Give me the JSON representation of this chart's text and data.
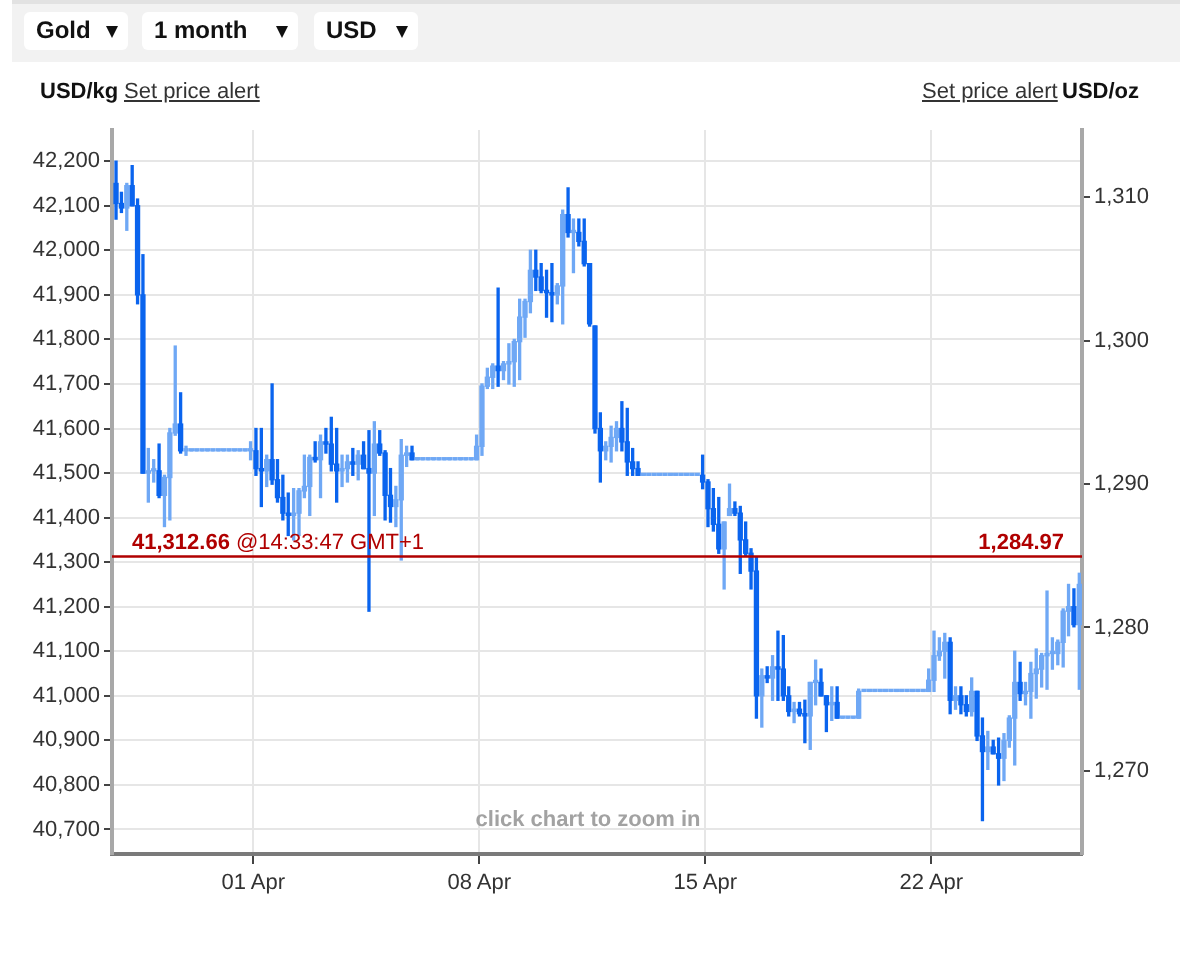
{
  "chart_data": {
    "type": "candlestick",
    "ylabel": "USD/kg",
    "y2label": "USD/oz",
    "grid": true,
    "xlim": [
      "--03-27T15:00",
      "--04-26T16:00"
    ],
    "xticks": [
      {
        "value": "--04-01",
        "label": "01 Apr"
      },
      {
        "value": "--04-08",
        "label": "08 Apr"
      },
      {
        "value": "--04-15",
        "label": "15 Apr"
      },
      {
        "value": "--04-22",
        "label": "22 Apr"
      }
    ],
    "ylim": [
      40645,
      42270
    ],
    "yticks": [
      {
        "value": 40700,
        "label": "40,700"
      },
      {
        "value": 40800,
        "label": "40,800"
      },
      {
        "value": 40900,
        "label": "40,900"
      },
      {
        "value": 41000,
        "label": "41,000"
      },
      {
        "value": 41100,
        "label": "41,100"
      },
      {
        "value": 41200,
        "label": "41,200"
      },
      {
        "value": 41300,
        "label": "41,300"
      },
      {
        "value": 41400,
        "label": "41,400"
      },
      {
        "value": 41500,
        "label": "41,500"
      },
      {
        "value": 41600,
        "label": "41,600"
      },
      {
        "value": 41700,
        "label": "41,700"
      },
      {
        "value": 41800,
        "label": "41,800"
      },
      {
        "value": 41900,
        "label": "41,900"
      },
      {
        "value": 42000,
        "label": "42,000"
      },
      {
        "value": 42100,
        "label": "42,100"
      },
      {
        "value": 42200,
        "label": "42,200"
      }
    ],
    "y2lim": [
      1264.2,
      1314.7
    ],
    "y2ticks": [
      {
        "value": 1270,
        "label": "1,270"
      },
      {
        "value": 1280,
        "label": "1,280"
      },
      {
        "value": 1290,
        "label": "1,290"
      },
      {
        "value": 1300,
        "label": "1,300"
      },
      {
        "value": 1310,
        "label": "1,310"
      }
    ],
    "ref_lines": [
      {
        "axis": "y",
        "value": 41312.66,
        "label": "41,312.66 @14:33:47 GMT+1",
        "color": "#b00000"
      }
    ],
    "annotations": [
      "Gold",
      "1 month",
      "USD",
      "Set price alert",
      "Set price alert",
      "click chart to zoom in",
      {
        "text": "1,284.97",
        "x": "--04-26T16:00",
        "y": 41312.66
      }
    ],
    "x": [
      "--03-27T18:00",
      "--03-27T22:00",
      "--03-28T02:00",
      "--03-28T06:00",
      "--03-28T10:00",
      "--03-28T14:00",
      "--03-28T18:00",
      "--03-28T22:00",
      "--03-29T02:00",
      "--03-29T06:00",
      "--03-29T10:00",
      "--03-29T14:00",
      "--03-29T18:00",
      "--03-29T22:00",
      "--03-30T02:00",
      "--03-30T06:00",
      "--03-30T10:00",
      "--03-30T14:00",
      "--03-30T18:00",
      "--03-30T22:00",
      "--03-31T02:00",
      "--03-31T06:00",
      "--03-31T10:00",
      "--03-31T14:00",
      "--03-31T18:00",
      "--03-31T22:00",
      "--04-01T02:00",
      "--04-01T06:00",
      "--04-01T10:00",
      "--04-01T14:00",
      "--04-01T18:00",
      "--04-01T22:00",
      "--04-02T02:00",
      "--04-02T06:00",
      "--04-02T10:00",
      "--04-02T14:00",
      "--04-02T18:00",
      "--04-02T22:00",
      "--04-03T02:00",
      "--04-03T06:00",
      "--04-03T10:00",
      "--04-03T14:00",
      "--04-03T18:00",
      "--04-03T22:00",
      "--04-04T02:00",
      "--04-04T06:00",
      "--04-04T10:00",
      "--04-04T14:00",
      "--04-04T18:00",
      "--04-04T22:00",
      "--04-05T02:00",
      "--04-05T06:00",
      "--04-05T10:00",
      "--04-05T14:00",
      "--04-05T18:00",
      "--04-05T22:00",
      "--04-06T02:00",
      "--04-06T06:00",
      "--04-06T10:00",
      "--04-06T14:00",
      "--04-06T18:00",
      "--04-06T22:00",
      "--04-07T02:00",
      "--04-07T06:00",
      "--04-07T10:00",
      "--04-07T14:00",
      "--04-07T18:00",
      "--04-07T22:00",
      "--04-08T02:00",
      "--04-08T06:00",
      "--04-08T10:00",
      "--04-08T14:00",
      "--04-08T18:00",
      "--04-08T22:00",
      "--04-09T02:00",
      "--04-09T06:00",
      "--04-09T10:00",
      "--04-09T14:00",
      "--04-09T18:00",
      "--04-09T22:00",
      "--04-10T02:00",
      "--04-10T06:00",
      "--04-10T10:00",
      "--04-10T14:00",
      "--04-10T18:00",
      "--04-10T22:00",
      "--04-11T02:00",
      "--04-11T06:00",
      "--04-11T10:00",
      "--04-11T14:00",
      "--04-11T18:00",
      "--04-11T22:00",
      "--04-12T02:00",
      "--04-12T06:00",
      "--04-12T10:00",
      "--04-12T14:00",
      "--04-12T18:00",
      "--04-12T22:00",
      "--04-13T02:00",
      "--04-13T06:00",
      "--04-13T10:00",
      "--04-13T14:00",
      "--04-13T18:00",
      "--04-13T22:00",
      "--04-14T02:00",
      "--04-14T06:00",
      "--04-14T10:00",
      "--04-14T14:00",
      "--04-14T18:00",
      "--04-14T22:00",
      "--04-15T02:00",
      "--04-15T06:00",
      "--04-15T10:00",
      "--04-15T14:00",
      "--04-15T18:00",
      "--04-15T22:00",
      "--04-16T02:00",
      "--04-16T06:00",
      "--04-16T10:00",
      "--04-16T14:00",
      "--04-16T18:00",
      "--04-16T22:00",
      "--04-17T02:00",
      "--04-17T06:00",
      "--04-17T10:00",
      "--04-17T14:00",
      "--04-17T18:00",
      "--04-17T22:00",
      "--04-18T02:00",
      "--04-18T06:00",
      "--04-18T10:00",
      "--04-18T14:00",
      "--04-18T18:00",
      "--04-18T22:00",
      "--04-19T02:00",
      "--04-19T06:00",
      "--04-19T10:00",
      "--04-19T14:00",
      "--04-19T18:00",
      "--04-19T22:00",
      "--04-20T02:00",
      "--04-20T06:00",
      "--04-20T10:00",
      "--04-20T14:00",
      "--04-20T18:00",
      "--04-20T22:00",
      "--04-21T02:00",
      "--04-21T06:00",
      "--04-21T10:00",
      "--04-21T14:00",
      "--04-21T18:00",
      "--04-21T22:00",
      "--04-22T02:00",
      "--04-22T06:00",
      "--04-22T10:00",
      "--04-22T14:00",
      "--04-22T18:00",
      "--04-22T22:00",
      "--04-23T02:00",
      "--04-23T06:00",
      "--04-23T10:00",
      "--04-23T14:00",
      "--04-23T18:00",
      "--04-23T22:00",
      "--04-24T02:00",
      "--04-24T06:00",
      "--04-24T10:00",
      "--04-24T14:00",
      "--04-24T18:00",
      "--04-24T22:00",
      "--04-25T02:00",
      "--04-25T06:00",
      "--04-25T10:00",
      "--04-25T14:00",
      "--04-25T18:00",
      "--04-25T22:00",
      "--04-26T02:00",
      "--04-26T06:00",
      "--04-26T10:00",
      "--04-26T14:00"
    ],
    "ohlc": [
      [
        42150,
        42200,
        42070,
        42105
      ],
      [
        42105,
        42130,
        42085,
        42095
      ],
      [
        42095,
        42150,
        42045,
        42145
      ],
      [
        42145,
        42190,
        42100,
        42100
      ],
      [
        42100,
        42115,
        41880,
        41900
      ],
      [
        41900,
        41990,
        41500,
        41500
      ],
      [
        41500,
        41555,
        41435,
        41505
      ],
      [
        41505,
        41530,
        41480,
        41505
      ],
      [
        41505,
        41565,
        41445,
        41450
      ],
      [
        41450,
        41495,
        41380,
        41490
      ],
      [
        41490,
        41600,
        41395,
        41590
      ],
      [
        41590,
        41785,
        41585,
        41610
      ],
      [
        41610,
        41680,
        41545,
        41550
      ],
      [
        41550,
        41560,
        41540,
        41550
      ],
      [
        41550,
        41550,
        41550,
        41550
      ],
      [
        41550,
        41550,
        41550,
        41550
      ],
      [
        41550,
        41550,
        41550,
        41550
      ],
      [
        41550,
        41550,
        41550,
        41550
      ],
      [
        41550,
        41550,
        41550,
        41550
      ],
      [
        41550,
        41550,
        41550,
        41550
      ],
      [
        41550,
        41550,
        41550,
        41550
      ],
      [
        41550,
        41550,
        41550,
        41550
      ],
      [
        41550,
        41550,
        41550,
        41550
      ],
      [
        41550,
        41550,
        41550,
        41550
      ],
      [
        41550,
        41550,
        41550,
        41550
      ],
      [
        41550,
        41570,
        41530,
        41550
      ],
      [
        41550,
        41600,
        41495,
        41510
      ],
      [
        41510,
        41600,
        41425,
        41505
      ],
      [
        41505,
        41540,
        41470,
        41530
      ],
      [
        41530,
        41700,
        41475,
        41485
      ],
      [
        41485,
        41530,
        41435,
        41445
      ],
      [
        41445,
        41495,
        41395,
        41410
      ],
      [
        41410,
        41455,
        41360,
        41405
      ],
      [
        41405,
        41465,
        41350,
        41410
      ],
      [
        41410,
        41465,
        41360,
        41460
      ],
      [
        41460,
        41540,
        41445,
        41470
      ],
      [
        41470,
        41540,
        41405,
        41535
      ],
      [
        41535,
        41570,
        41525,
        41530
      ],
      [
        41530,
        41585,
        41445,
        41570
      ],
      [
        41570,
        41600,
        41545,
        41565
      ],
      [
        41565,
        41625,
        41505,
        41520
      ],
      [
        41520,
        41600,
        41435,
        41505
      ],
      [
        41505,
        41540,
        41470,
        41510
      ],
      [
        41510,
        41540,
        41480,
        41525
      ],
      [
        41525,
        41555,
        41495,
        41520
      ],
      [
        41520,
        41550,
        41485,
        41540
      ],
      [
        41540,
        41570,
        41510,
        41510
      ],
      [
        41510,
        41595,
        41190,
        41500
      ],
      [
        41500,
        41615,
        41405,
        41565
      ],
      [
        41565,
        41595,
        41540,
        41545
      ],
      [
        41545,
        41550,
        41395,
        41450
      ],
      [
        41450,
        41510,
        41390,
        41425
      ],
      [
        41425,
        41470,
        41380,
        41440
      ],
      [
        41440,
        41575,
        41305,
        41540
      ],
      [
        41540,
        41560,
        41515,
        41545
      ],
      [
        41545,
        41560,
        41530,
        41530
      ],
      [
        41530,
        41530,
        41530,
        41530
      ],
      [
        41530,
        41530,
        41530,
        41530
      ],
      [
        41530,
        41530,
        41530,
        41530
      ],
      [
        41530,
        41530,
        41530,
        41530
      ],
      [
        41530,
        41530,
        41530,
        41530
      ],
      [
        41530,
        41530,
        41530,
        41530
      ],
      [
        41530,
        41530,
        41530,
        41530
      ],
      [
        41530,
        41530,
        41530,
        41530
      ],
      [
        41530,
        41530,
        41530,
        41530
      ],
      [
        41530,
        41530,
        41530,
        41530
      ],
      [
        41530,
        41530,
        41530,
        41530
      ],
      [
        41530,
        41585,
        41530,
        41560
      ],
      [
        41560,
        41700,
        41540,
        41695
      ],
      [
        41695,
        41735,
        41690,
        41715
      ],
      [
        41715,
        41745,
        41690,
        41740
      ],
      [
        41740,
        41915,
        41695,
        41730
      ],
      [
        41730,
        41750,
        41710,
        41745
      ],
      [
        41745,
        41790,
        41700,
        41750
      ],
      [
        41750,
        41800,
        41695,
        41795
      ],
      [
        41795,
        41890,
        41710,
        41850
      ],
      [
        41850,
        41890,
        41805,
        41885
      ],
      [
        41885,
        42000,
        41860,
        41955
      ],
      [
        41955,
        42000,
        41910,
        41940
      ],
      [
        41940,
        41970,
        41905,
        41910
      ],
      [
        41910,
        41955,
        41850,
        41905
      ],
      [
        41905,
        41970,
        41840,
        41900
      ],
      [
        41900,
        41925,
        41880,
        41920
      ],
      [
        41920,
        42090,
        41835,
        42080
      ],
      [
        42080,
        42140,
        42030,
        42040
      ],
      [
        42040,
        42070,
        41950,
        42040
      ],
      [
        42040,
        42070,
        42010,
        42020
      ],
      [
        42020,
        42070,
        41965,
        41970
      ],
      [
        41970,
        41970,
        41830,
        41835
      ],
      [
        41830,
        41830,
        41590,
        41600
      ],
      [
        41600,
        41635,
        41480,
        41550
      ],
      [
        41550,
        41570,
        41530,
        41560
      ],
      [
        41560,
        41605,
        41525,
        41580
      ],
      [
        41580,
        41615,
        41550,
        41600
      ],
      [
        41600,
        41660,
        41550,
        41570
      ],
      [
        41570,
        41645,
        41495,
        41525
      ],
      [
        41525,
        41555,
        41495,
        41510
      ],
      [
        41510,
        41525,
        41495,
        41495
      ],
      [
        41495,
        41495,
        41495,
        41495
      ],
      [
        41495,
        41495,
        41495,
        41495
      ],
      [
        41495,
        41495,
        41495,
        41495
      ],
      [
        41495,
        41495,
        41495,
        41495
      ],
      [
        41495,
        41495,
        41495,
        41495
      ],
      [
        41495,
        41495,
        41495,
        41495
      ],
      [
        41495,
        41495,
        41495,
        41495
      ],
      [
        41495,
        41495,
        41495,
        41495
      ],
      [
        41495,
        41495,
        41495,
        41495
      ],
      [
        41495,
        41495,
        41495,
        41495
      ],
      [
        41495,
        41495,
        41495,
        41495
      ],
      [
        41495,
        41540,
        41465,
        41480
      ],
      [
        41480,
        41485,
        41380,
        41420
      ],
      [
        41420,
        41465,
        41370,
        41385
      ],
      [
        41385,
        41445,
        41320,
        41330
      ],
      [
        41330,
        41390,
        41240,
        41390
      ],
      [
        41405,
        41475,
        41405,
        41420
      ],
      [
        41420,
        41435,
        41405,
        41410
      ],
      [
        41410,
        41425,
        41275,
        41350
      ],
      [
        41350,
        41390,
        41315,
        41320
      ],
      [
        41320,
        41330,
        41240,
        41280
      ],
      [
        41280,
        41310,
        40950,
        41000
      ],
      [
        41000,
        41060,
        40930,
        41045
      ],
      [
        41045,
        41065,
        41030,
        41040
      ],
      [
        41040,
        41090,
        40990,
        41065
      ],
      [
        41065,
        41145,
        40990,
        41060
      ],
      [
        41060,
        41135,
        40990,
        41000
      ],
      [
        41000,
        41020,
        40955,
        40965
      ],
      [
        40965,
        40985,
        40940,
        40970
      ],
      [
        40970,
        40985,
        40955,
        40960
      ],
      [
        40960,
        40990,
        40895,
        40955
      ],
      [
        40955,
        41030,
        40880,
        41030
      ],
      [
        41030,
        41080,
        40980,
        41030
      ],
      [
        41030,
        41060,
        41000,
        41000
      ],
      [
        41000,
        41000,
        40920,
        40980
      ],
      [
        40980,
        41020,
        40945,
        40985
      ],
      [
        40985,
        41020,
        40950,
        40950
      ],
      [
        40950,
        40950,
        40950,
        40950
      ],
      [
        40950,
        40950,
        40950,
        40950
      ],
      [
        40950,
        40950,
        40950,
        40950
      ],
      [
        40950,
        41015,
        40950,
        41010
      ],
      [
        41010,
        41010,
        41010,
        41010
      ],
      [
        41010,
        41010,
        41010,
        41010
      ],
      [
        41010,
        41010,
        41010,
        41010
      ],
      [
        41010,
        41010,
        41010,
        41010
      ],
      [
        41010,
        41010,
        41010,
        41010
      ],
      [
        41010,
        41010,
        41010,
        41010
      ],
      [
        41010,
        41010,
        41010,
        41010
      ],
      [
        41010,
        41010,
        41010,
        41010
      ],
      [
        41010,
        41010,
        41010,
        41010
      ],
      [
        41010,
        41010,
        41010,
        41010
      ],
      [
        41010,
        41010,
        41010,
        41010
      ],
      [
        41010,
        41010,
        41010,
        41010
      ],
      [
        41010,
        41060,
        41010,
        41035
      ],
      [
        41035,
        41145,
        41010,
        41090
      ],
      [
        41090,
        41130,
        41080,
        41100
      ],
      [
        41100,
        41140,
        41040,
        41120
      ],
      [
        41120,
        41130,
        40960,
        40990
      ],
      [
        40990,
        41020,
        40970,
        41000
      ],
      [
        41000,
        41020,
        40960,
        40980
      ],
      [
        40980,
        41000,
        40955,
        40965
      ],
      [
        40965,
        41040,
        40955,
        41010
      ],
      [
        41010,
        41010,
        40900,
        40910
      ],
      [
        40910,
        40950,
        40720,
        40875
      ],
      [
        40875,
        40920,
        40835,
        40885
      ],
      [
        40885,
        40900,
        40870,
        40870
      ],
      [
        40870,
        40905,
        40800,
        40860
      ],
      [
        40860,
        40915,
        40810,
        40900
      ],
      [
        40900,
        40955,
        40885,
        40950
      ],
      [
        40950,
        41100,
        40845,
        41030
      ],
      [
        41030,
        41075,
        40990,
        41005
      ],
      [
        41005,
        41030,
        40980,
        41010
      ],
      [
        41010,
        41075,
        40950,
        41050
      ],
      [
        41050,
        41105,
        40995,
        41060
      ],
      [
        41060,
        41095,
        41020,
        41090
      ],
      [
        41090,
        41235,
        41015,
        41095
      ],
      [
        41095,
        41130,
        41060,
        41095
      ],
      [
        41095,
        41125,
        41070,
        41120
      ],
      [
        41120,
        41195,
        41065,
        41190
      ],
      [
        41190,
        41250,
        41135,
        41200
      ],
      [
        41200,
        41240,
        41155,
        41160
      ],
      [
        41160,
        41275,
        41015,
        41250
      ]
    ],
    "colors": [
      "#0a64ee",
      "#0a64ee",
      "#6fa8f5",
      "#0a64ee",
      "#0a64ee",
      "#0a64ee",
      "#6fa8f5",
      "#6fa8f5",
      "#0a64ee",
      "#6fa8f5",
      "#6fa8f5",
      "#6fa8f5",
      "#0a64ee",
      "#6fa8f5",
      "#6fa8f5",
      "#6fa8f5",
      "#6fa8f5",
      "#6fa8f5",
      "#6fa8f5",
      "#6fa8f5",
      "#6fa8f5",
      "#6fa8f5",
      "#6fa8f5",
      "#6fa8f5",
      "#6fa8f5",
      "#6fa8f5",
      "#0a64ee",
      "#0a64ee",
      "#6fa8f5",
      "#0a64ee",
      "#0a64ee",
      "#0a64ee",
      "#0a64ee",
      "#6fa8f5",
      "#6fa8f5",
      "#6fa8f5",
      "#6fa8f5",
      "#0a64ee",
      "#6fa8f5",
      "#0a64ee",
      "#0a64ee",
      "#0a64ee",
      "#6fa8f5",
      "#6fa8f5",
      "#0a64ee",
      "#6fa8f5",
      "#0a64ee",
      "#0a64ee",
      "#6fa8f5",
      "#0a64ee",
      "#0a64ee",
      "#0a64ee",
      "#6fa8f5",
      "#6fa8f5",
      "#6fa8f5",
      "#0a64ee",
      "#6fa8f5",
      "#6fa8f5",
      "#6fa8f5",
      "#6fa8f5",
      "#6fa8f5",
      "#6fa8f5",
      "#6fa8f5",
      "#6fa8f5",
      "#6fa8f5",
      "#6fa8f5",
      "#6fa8f5",
      "#6fa8f5",
      "#6fa8f5",
      "#6fa8f5",
      "#6fa8f5",
      "#0a64ee",
      "#6fa8f5",
      "#6fa8f5",
      "#6fa8f5",
      "#6fa8f5",
      "#6fa8f5",
      "#6fa8f5",
      "#0a64ee",
      "#0a64ee",
      "#0a64ee",
      "#0a64ee",
      "#6fa8f5",
      "#6fa8f5",
      "#0a64ee",
      "#6fa8f5",
      "#0a64ee",
      "#0a64ee",
      "#0a64ee",
      "#0a64ee",
      "#0a64ee",
      "#6fa8f5",
      "#6fa8f5",
      "#6fa8f5",
      "#0a64ee",
      "#0a64ee",
      "#0a64ee",
      "#0a64ee",
      "#6fa8f5",
      "#6fa8f5",
      "#6fa8f5",
      "#6fa8f5",
      "#6fa8f5",
      "#6fa8f5",
      "#6fa8f5",
      "#6fa8f5",
      "#6fa8f5",
      "#6fa8f5",
      "#6fa8f5",
      "#0a64ee",
      "#0a64ee",
      "#0a64ee",
      "#0a64ee",
      "#6fa8f5",
      "#6fa8f5",
      "#0a64ee",
      "#0a64ee",
      "#0a64ee",
      "#0a64ee",
      "#0a64ee",
      "#6fa8f5",
      "#0a64ee",
      "#6fa8f5",
      "#0a64ee",
      "#0a64ee",
      "#0a64ee",
      "#6fa8f5",
      "#0a64ee",
      "#0a64ee",
      "#6fa8f5",
      "#6fa8f5",
      "#0a64ee",
      "#0a64ee",
      "#6fa8f5",
      "#0a64ee",
      "#6fa8f5",
      "#6fa8f5",
      "#6fa8f5",
      "#6fa8f5",
      "#6fa8f5",
      "#6fa8f5",
      "#6fa8f5",
      "#6fa8f5",
      "#6fa8f5",
      "#6fa8f5",
      "#6fa8f5",
      "#6fa8f5",
      "#6fa8f5",
      "#6fa8f5",
      "#6fa8f5",
      "#6fa8f5",
      "#6fa8f5",
      "#6fa8f5",
      "#6fa8f5",
      "#6fa8f5",
      "#0a64ee",
      "#6fa8f5",
      "#0a64ee",
      "#0a64ee",
      "#6fa8f5",
      "#0a64ee",
      "#0a64ee",
      "#6fa8f5",
      "#0a64ee",
      "#0a64ee",
      "#6fa8f5",
      "#6fa8f5",
      "#6fa8f5",
      "#0a64ee",
      "#6fa8f5",
      "#6fa8f5",
      "#6fa8f5",
      "#6fa8f5",
      "#6fa8f5",
      "#6fa8f5",
      "#6fa8f5",
      "#6fa8f5",
      "#6fa8f5",
      "#0a64ee",
      "#6fa8f5"
    ]
  }
}
